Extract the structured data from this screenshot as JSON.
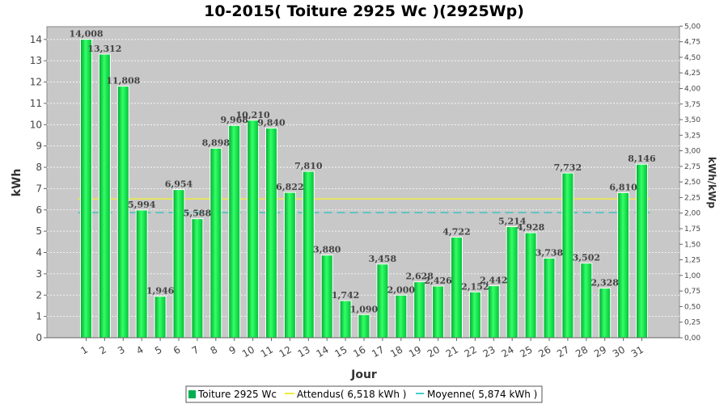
{
  "chart_data": {
    "type": "bar",
    "title": "10-2015( Toiture 2925 Wc )(2925Wp)",
    "xlabel": "Jour",
    "ylabel": "kWh",
    "ylabel_right": "kWh/kWp",
    "ylim": [
      0,
      14.6
    ],
    "yticks": [
      "0",
      "1",
      "2",
      "3",
      "4",
      "5",
      "6",
      "7",
      "8",
      "9",
      "10",
      "11",
      "12",
      "13",
      "14"
    ],
    "y2lim": [
      0,
      5.0
    ],
    "y2ticks": [
      "0,00",
      "0,25",
      "0,50",
      "0,75",
      "1,00",
      "1,25",
      "1,50",
      "1,75",
      "2,00",
      "2,25",
      "2,50",
      "2,75",
      "3,00",
      "3,25",
      "3,50",
      "3,75",
      "4,00",
      "4,25",
      "4,50",
      "4,75",
      "5,00"
    ],
    "categories": [
      "1",
      "2",
      "3",
      "4",
      "5",
      "6",
      "7",
      "8",
      "9",
      "10",
      "11",
      "12",
      "13",
      "14",
      "15",
      "16",
      "17",
      "18",
      "19",
      "20",
      "21",
      "22",
      "23",
      "24",
      "25",
      "26",
      "27",
      "28",
      "29",
      "30",
      "31"
    ],
    "values": [
      14.008,
      13.312,
      11.808,
      5.994,
      1.946,
      6.954,
      5.588,
      8.898,
      9.968,
      10.21,
      9.84,
      6.822,
      7.81,
      3.88,
      1.742,
      1.09,
      3.458,
      2.0,
      2.628,
      2.426,
      4.722,
      2.152,
      2.442,
      5.214,
      4.928,
      3.738,
      7.732,
      3.502,
      2.328,
      6.81,
      8.146
    ],
    "value_labels": [
      "14,008",
      "13,312",
      "11,808",
      "5,994",
      "1,946",
      "6,954",
      "5,588",
      "8,898",
      "9,968",
      "10,210",
      "9,840",
      "6,822",
      "7,810",
      "3,880",
      "1,742",
      "1,090",
      "3,458",
      "2,000",
      "2,628",
      "2,426",
      "4,722",
      "2,152",
      "2,442",
      "5,214",
      "4,928",
      "3,738",
      "7,732",
      "3,502",
      "2,328",
      "6,810",
      "8,146"
    ],
    "reference_lines": [
      {
        "name": "Attendus( 6,518 kWh )",
        "value": 6.518,
        "style": "solid",
        "color": "#ffff00"
      },
      {
        "name": "Moyenne( 5,874 kWh )",
        "value": 5.874,
        "style": "dashed",
        "color": "#00bfbf"
      }
    ],
    "series_name": "Toiture 2925 Wc",
    "bar_color": "#00e040",
    "plot_background": "#c8c8c8",
    "grid": true,
    "legend_position": "bottom"
  }
}
